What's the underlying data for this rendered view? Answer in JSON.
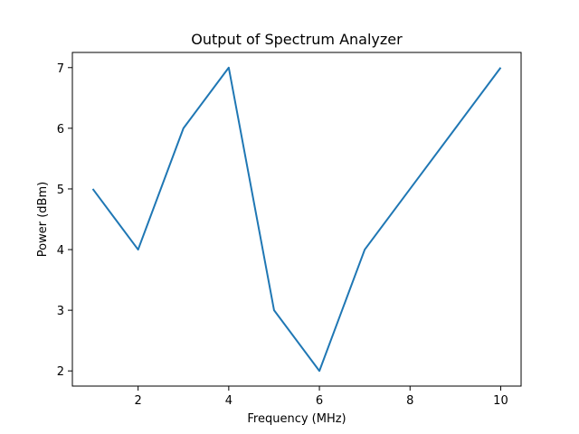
{
  "chart_data": {
    "type": "line",
    "title": "Output of Spectrum Analyzer",
    "xlabel": "Frequency (MHz)",
    "ylabel": "Power (dBm)",
    "x": [
      1,
      2,
      3,
      4,
      5,
      6,
      7,
      8,
      9,
      10
    ],
    "series": [
      {
        "values": [
          5,
          4,
          6,
          7,
          3,
          2,
          4,
          5,
          6,
          7
        ],
        "color": "#1f77b4"
      }
    ],
    "xlim": [
      0.55,
      10.45
    ],
    "ylim": [
      1.75,
      7.25
    ],
    "xticks": [
      2,
      4,
      6,
      8,
      10
    ],
    "yticks": [
      2,
      3,
      4,
      5,
      6,
      7
    ],
    "grid": false,
    "legend": "none"
  }
}
